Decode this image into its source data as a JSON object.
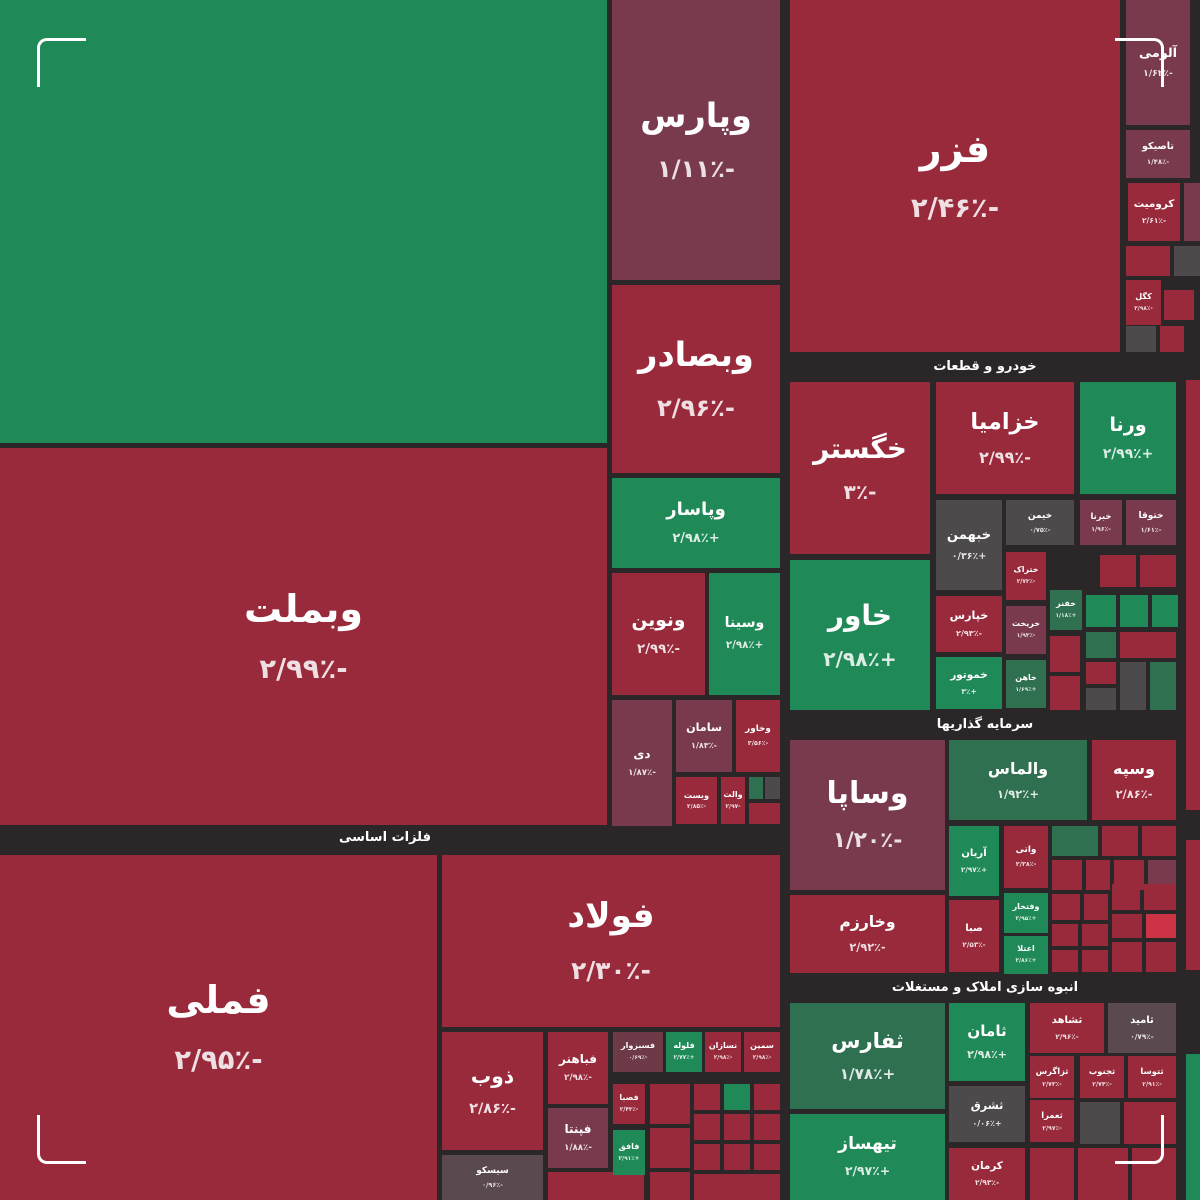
{
  "sections": [
    {
      "label": "فلزات اساسی"
    },
    {
      "label": "خودرو و قطعات"
    },
    {
      "label": "سرمایه گذاریها"
    },
    {
      "label": "انبوه سازی املاک و مستغلات"
    }
  ],
  "tiles": [
    {
      "label": "وبملت",
      "change": "-۲/۹۹٪",
      "color": "#982a3c"
    },
    {
      "label": "فملی",
      "change": "-۲/۹۵٪",
      "color": "#982a3c"
    },
    {
      "label": "فولاد",
      "change": "-۲/۳۰٪",
      "color": "#982a3c"
    },
    {
      "label": "ذوب",
      "change": "-۲/۸۶٪",
      "color": "#982a3c"
    },
    {
      "label": "سیسکو",
      "change": "-۰/۹۶٪",
      "color": "#5a4a50"
    },
    {
      "label": "فباهنر",
      "change": "-۲/۹۸٪",
      "color": "#982a3c"
    },
    {
      "label": "فسبزوار",
      "change": "-۰/۶۹٪",
      "color": "#6e3a48"
    },
    {
      "label": "فلوله",
      "change": "+۲/۷۷٪",
      "color": "#1f8a57"
    },
    {
      "label": "نسازان",
      "change": "-۲/۹۸٪",
      "color": "#982a3c"
    },
    {
      "label": "سمین",
      "change": "-۲/۹۸٪",
      "color": "#982a3c"
    },
    {
      "label": "فصبا",
      "change": "-۲/۴۳٪",
      "color": "#982a3c"
    },
    {
      "label": "فافق",
      "change": "+۲/۹۱٪",
      "color": "#1f8a57"
    },
    {
      "label": "فپنتا",
      "change": "-۱/۸۸٪",
      "color": "#7a3a4e"
    },
    {
      "label": "وپارس",
      "change": "-۱/۱۱٪",
      "color": "#7a3a4e"
    },
    {
      "label": "وبصادر",
      "change": "-۲/۹۶٪",
      "color": "#982a3c"
    },
    {
      "label": "وپاسار",
      "change": "+۲/۹۸٪",
      "color": "#1f8a57"
    },
    {
      "label": "ونوین",
      "change": "-۲/۹۹٪",
      "color": "#982a3c"
    },
    {
      "label": "وسینا",
      "change": "+۲/۹۸٪",
      "color": "#1f8a57"
    },
    {
      "label": "دی",
      "change": "-۱/۸۷٪",
      "color": "#7a3a4e"
    },
    {
      "label": "سامان",
      "change": "-۱/۸۳٪",
      "color": "#7a3a4e"
    },
    {
      "label": "وخاور",
      "change": "-۲/۵۶٪",
      "color": "#982a3c"
    },
    {
      "label": "وبست",
      "change": "-۲/۸۵٪",
      "color": "#982a3c"
    },
    {
      "label": "والت",
      "change": "-۲/۹۷",
      "color": "#982a3c"
    },
    {
      "label": "فزر",
      "change": "-۲/۴۶٪",
      "color": "#982a3c"
    },
    {
      "label": "آلومی",
      "change": "-۱/۶۲٪",
      "color": "#7a3a4e"
    },
    {
      "label": "تاصیکو",
      "change": "-۱/۴۸٪",
      "color": "#7a3a4e"
    },
    {
      "label": "کرومیت",
      "change": "-۲/۶۱٪",
      "color": "#982a3c"
    },
    {
      "label": "کگل",
      "change": "-۲/۹۸٪",
      "color": "#982a3c"
    },
    {
      "label": "خگستر",
      "change": "-۳٪",
      "color": "#982a3c"
    },
    {
      "label": "خزامیا",
      "change": "-۲/۹۹٪",
      "color": "#982a3c"
    },
    {
      "label": "ورنا",
      "change": "+۲/۹۹٪",
      "color": "#1f8a57"
    },
    {
      "label": "خبهمن",
      "change": "+۰/۳۶٪",
      "color": "#4d4a4c"
    },
    {
      "label": "خیمن",
      "change": "-۰/۷۵٪",
      "color": "#4d4a4c"
    },
    {
      "label": "خبرنا",
      "change": "-۱/۹۶٪",
      "color": "#7a3a4e"
    },
    {
      "label": "ختوقا",
      "change": "-۱/۶۱٪",
      "color": "#7a3a4e"
    },
    {
      "label": "خاور",
      "change": "+۲/۹۸٪",
      "color": "#1f8a57"
    },
    {
      "label": "ختراک",
      "change": "-۲/۷۳٪",
      "color": "#982a3c"
    },
    {
      "label": "خپارس",
      "change": "-۲/۹۳٪",
      "color": "#982a3c"
    },
    {
      "label": "خریخت",
      "change": "-۱/۹۳٪",
      "color": "#7a3a4e"
    },
    {
      "label": "خفنر",
      "change": "+۱/۱۸٪",
      "color": "#2e7050"
    },
    {
      "label": "خموتور",
      "change": "+۳٪",
      "color": "#1f8a57"
    },
    {
      "label": "خاهن",
      "change": "+۱/۶۹٪",
      "color": "#2e7050"
    },
    {
      "label": "وساپا",
      "change": "-۱/۲۰٪",
      "color": "#7a3a4e"
    },
    {
      "label": "والماس",
      "change": "+۱/۹۲٪",
      "color": "#2e7050"
    },
    {
      "label": "وسپه",
      "change": "-۲/۸۶٪",
      "color": "#982a3c"
    },
    {
      "label": "آریان",
      "change": "+۲/۹۷٪",
      "color": "#1f8a57"
    },
    {
      "label": "واتی",
      "change": "-۲/۳۸٪",
      "color": "#982a3c"
    },
    {
      "label": "وخارزم",
      "change": "-۲/۹۲٪",
      "color": "#982a3c"
    },
    {
      "label": "صبا",
      "change": "-۲/۵۳٪",
      "color": "#982a3c"
    },
    {
      "label": "وفتخار",
      "change": "+۲/۹۵٪",
      "color": "#1f8a57"
    },
    {
      "label": "اعتلا",
      "change": "+۲/۸۶٪",
      "color": "#1f8a57"
    },
    {
      "label": "ثفارس",
      "change": "+۱/۷۸٪",
      "color": "#2e7050"
    },
    {
      "label": "ثامان",
      "change": "+۲/۹۸٪",
      "color": "#1f8a57"
    },
    {
      "label": "ثشاهد",
      "change": "-۲/۹۶٪",
      "color": "#982a3c"
    },
    {
      "label": "ثامید",
      "change": "-۰/۷۹٪",
      "color": "#5a4a50"
    },
    {
      "label": "ثزاگرس",
      "change": "-۲/۷۳٪",
      "color": "#982a3c"
    },
    {
      "label": "ثجنوب",
      "change": "-۲/۷۴٪",
      "color": "#982a3c"
    },
    {
      "label": "ثتوسا",
      "change": "-۲/۹۱٪",
      "color": "#982a3c"
    },
    {
      "label": "تیهساز",
      "change": "+۲/۹۷٪",
      "color": "#1f8a57"
    },
    {
      "label": "ثشرق",
      "change": "+۰/۰۶٪",
      "color": "#4d4a4c"
    },
    {
      "label": "ثعمرا",
      "change": "-۲/۹۷٪",
      "color": "#982a3c"
    },
    {
      "label": "کرمان",
      "change": "-۲/۹۳٪",
      "color": "#982a3c"
    }
  ]
}
